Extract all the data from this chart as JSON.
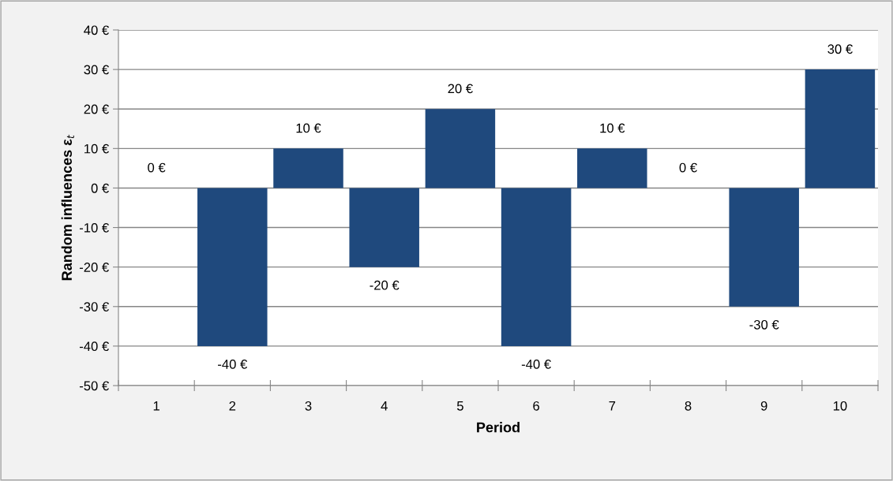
{
  "chart_data": {
    "type": "bar",
    "xlabel": "Period",
    "ylabel": "Random influences ε$_{t}$",
    "categories": [
      "1",
      "2",
      "3",
      "4",
      "5",
      "6",
      "7",
      "8",
      "9",
      "10"
    ],
    "values": [
      0,
      -40,
      10,
      -20,
      20,
      -40,
      10,
      0,
      -30,
      30
    ],
    "value_labels": [
      "0 €",
      "-40 €",
      "10 €",
      "-20 €",
      "20 €",
      "-40 €",
      "10 €",
      "0 €",
      "-30 €",
      "30 €"
    ],
    "color": "#1f497d",
    "ylim": [
      -50,
      40
    ],
    "yticks": [
      {
        "value": -50,
        "label": "-50 €"
      },
      {
        "value": -40,
        "label": "-40 €"
      },
      {
        "value": -30,
        "label": "-30 €"
      },
      {
        "value": -20,
        "label": "-20 €"
      },
      {
        "value": -10,
        "label": "-10 €"
      },
      {
        "value": 0,
        "label": "0 €"
      },
      {
        "value": 10,
        "label": "10 €"
      },
      {
        "value": 20,
        "label": "20 €"
      },
      {
        "value": 30,
        "label": "30 €"
      },
      {
        "value": 40,
        "label": "40 €"
      }
    ],
    "grid": "y",
    "legend": false
  }
}
